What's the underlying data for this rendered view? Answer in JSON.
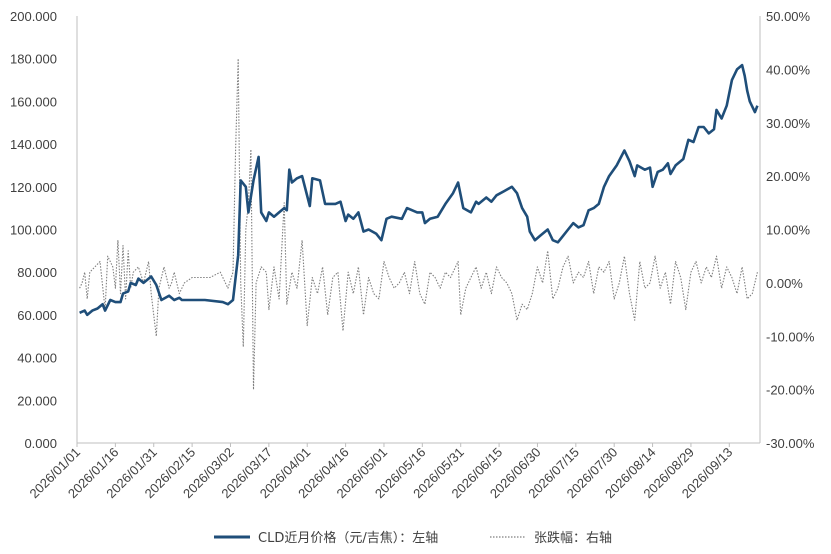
{
  "chart_data": {
    "type": "line",
    "x_tick_labels": [
      "2026/01/01",
      "2026/01/16",
      "2026/01/31",
      "2026/02/15",
      "2026/03/02",
      "2026/03/17",
      "2026/04/01",
      "2026/04/16",
      "2026/05/01",
      "2026/05/16",
      "2026/05/31",
      "2026/06/15",
      "2026/06/30",
      "2026/07/15",
      "2026/07/30",
      "2026/08/14",
      "2026/08/29",
      "2026/09/13"
    ],
    "x_range": [
      "2026-01-01",
      "2026-09-25"
    ],
    "y_left": {
      "min": 0,
      "max": 200,
      "step": 20,
      "tick_labels": [
        "0.000",
        "20.000",
        "40.000",
        "60.000",
        "80.000",
        "100.000",
        "120.000",
        "140.000",
        "160.000",
        "180.000",
        "200.000"
      ]
    },
    "y_right": {
      "min": -30,
      "max": 50,
      "step": 10,
      "tick_labels": [
        "-30.00%",
        "-20.00%",
        "-10.00%",
        "0.00%",
        "10.00%",
        "20.00%",
        "30.00%",
        "40.00%",
        "50.00%"
      ]
    },
    "grid": false,
    "legend_position": "bottom",
    "series": [
      {
        "name": "CLD近月价格（元/吉焦）：左轴",
        "axis": "left",
        "style": "solid",
        "color": "#1f4e79",
        "points": [
          [
            "2026-01-02",
            61
          ],
          [
            "2026-01-04",
            62
          ],
          [
            "2026-01-05",
            60
          ],
          [
            "2026-01-07",
            62
          ],
          [
            "2026-01-09",
            63
          ],
          [
            "2026-01-11",
            65
          ],
          [
            "2026-01-12",
            62
          ],
          [
            "2026-01-14",
            67
          ],
          [
            "2026-01-16",
            66
          ],
          [
            "2026-01-18",
            66
          ],
          [
            "2026-01-19",
            70
          ],
          [
            "2026-01-21",
            71
          ],
          [
            "2026-01-22",
            75
          ],
          [
            "2026-01-24",
            74
          ],
          [
            "2026-01-25",
            77
          ],
          [
            "2026-01-27",
            75
          ],
          [
            "2026-01-30",
            78
          ],
          [
            "2026-02-01",
            74
          ],
          [
            "2026-02-03",
            67
          ],
          [
            "2026-02-06",
            69
          ],
          [
            "2026-02-08",
            67
          ],
          [
            "2026-02-10",
            68
          ],
          [
            "2026-02-11",
            67
          ],
          [
            "2026-02-14",
            67
          ],
          [
            "2026-02-20",
            67
          ],
          [
            "2026-02-27",
            66
          ],
          [
            "2026-03-01",
            65
          ],
          [
            "2026-03-03",
            67
          ],
          [
            "2026-03-05",
            88
          ],
          [
            "2026-03-06",
            123
          ],
          [
            "2026-03-08",
            120
          ],
          [
            "2026-03-09",
            108
          ],
          [
            "2026-03-11",
            123
          ],
          [
            "2026-03-13",
            134
          ],
          [
            "2026-03-14",
            108
          ],
          [
            "2026-03-16",
            104
          ],
          [
            "2026-03-17",
            108
          ],
          [
            "2026-03-19",
            106
          ],
          [
            "2026-03-21",
            108
          ],
          [
            "2026-03-23",
            110
          ],
          [
            "2026-03-24",
            109
          ],
          [
            "2026-03-25",
            128
          ],
          [
            "2026-03-26",
            122
          ],
          [
            "2026-03-28",
            124
          ],
          [
            "2026-03-30",
            125
          ],
          [
            "2026-04-02",
            111
          ],
          [
            "2026-04-03",
            124
          ],
          [
            "2026-04-06",
            123
          ],
          [
            "2026-04-08",
            112
          ],
          [
            "2026-04-12",
            112
          ],
          [
            "2026-04-14",
            113
          ],
          [
            "2026-04-16",
            104
          ],
          [
            "2026-04-17",
            107
          ],
          [
            "2026-04-19",
            105
          ],
          [
            "2026-04-21",
            108
          ],
          [
            "2026-04-23",
            99
          ],
          [
            "2026-04-25",
            100
          ],
          [
            "2026-04-28",
            98
          ],
          [
            "2026-04-30",
            95
          ],
          [
            "2026-05-02",
            105
          ],
          [
            "2026-05-04",
            106
          ],
          [
            "2026-05-08",
            105
          ],
          [
            "2026-05-10",
            110
          ],
          [
            "2026-05-14",
            108
          ],
          [
            "2026-05-16",
            108
          ],
          [
            "2026-05-17",
            103
          ],
          [
            "2026-05-19",
            105
          ],
          [
            "2026-05-22",
            106
          ],
          [
            "2026-05-25",
            112
          ],
          [
            "2026-05-28",
            117
          ],
          [
            "2026-05-30",
            122
          ],
          [
            "2026-06-01",
            110
          ],
          [
            "2026-06-04",
            108
          ],
          [
            "2026-06-06",
            113
          ],
          [
            "2026-06-07",
            112
          ],
          [
            "2026-06-10",
            115
          ],
          [
            "2026-06-12",
            113
          ],
          [
            "2026-06-14",
            116
          ],
          [
            "2026-06-17",
            118
          ],
          [
            "2026-06-20",
            120
          ],
          [
            "2026-06-22",
            117
          ],
          [
            "2026-06-24",
            110
          ],
          [
            "2026-06-26",
            106
          ],
          [
            "2026-06-27",
            99
          ],
          [
            "2026-06-29",
            95
          ],
          [
            "2026-07-01",
            97
          ],
          [
            "2026-07-04",
            100
          ],
          [
            "2026-07-06",
            95
          ],
          [
            "2026-07-08",
            94
          ],
          [
            "2026-07-10",
            97
          ],
          [
            "2026-07-12",
            100
          ],
          [
            "2026-07-14",
            103
          ],
          [
            "2026-07-16",
            101
          ],
          [
            "2026-07-18",
            102
          ],
          [
            "2026-07-20",
            109
          ],
          [
            "2026-07-22",
            110
          ],
          [
            "2026-07-24",
            112
          ],
          [
            "2026-07-26",
            120
          ],
          [
            "2026-07-28",
            125
          ],
          [
            "2026-07-31",
            130
          ],
          [
            "2026-08-03",
            137
          ],
          [
            "2026-08-05",
            132
          ],
          [
            "2026-08-07",
            125
          ],
          [
            "2026-08-08",
            130
          ],
          [
            "2026-08-11",
            128
          ],
          [
            "2026-08-13",
            129
          ],
          [
            "2026-08-14",
            120
          ],
          [
            "2026-08-16",
            127
          ],
          [
            "2026-08-18",
            128
          ],
          [
            "2026-08-20",
            131
          ],
          [
            "2026-08-21",
            126
          ],
          [
            "2026-08-23",
            130
          ],
          [
            "2026-08-26",
            133
          ],
          [
            "2026-08-28",
            142
          ],
          [
            "2026-08-30",
            141
          ],
          [
            "2026-09-01",
            148
          ],
          [
            "2026-09-03",
            148
          ],
          [
            "2026-09-05",
            145
          ],
          [
            "2026-09-07",
            147
          ],
          [
            "2026-09-08",
            156
          ],
          [
            "2026-09-10",
            152
          ],
          [
            "2026-09-12",
            158
          ],
          [
            "2026-09-14",
            170
          ],
          [
            "2026-09-16",
            175
          ],
          [
            "2026-09-18",
            177
          ],
          [
            "2026-09-19",
            172
          ],
          [
            "2026-09-20",
            165
          ],
          [
            "2026-09-21",
            160
          ],
          [
            "2026-09-23",
            155
          ],
          [
            "2026-09-24",
            158
          ]
        ]
      },
      {
        "name": "张跌幅：右轴",
        "axis": "right",
        "style": "dotted",
        "color": "#7f7f7f",
        "points": [
          [
            "2026-01-02",
            -1
          ],
          [
            "2026-01-03",
            0
          ],
          [
            "2026-01-04",
            2
          ],
          [
            "2026-01-05",
            -3
          ],
          [
            "2026-01-06",
            2
          ],
          [
            "2026-01-08",
            3
          ],
          [
            "2026-01-10",
            4
          ],
          [
            "2026-01-12",
            -5
          ],
          [
            "2026-01-13",
            5
          ],
          [
            "2026-01-15",
            3
          ],
          [
            "2026-01-16",
            -1
          ],
          [
            "2026-01-17",
            8
          ],
          [
            "2026-01-18",
            -2
          ],
          [
            "2026-01-19",
            7
          ],
          [
            "2026-01-20",
            -3
          ],
          [
            "2026-01-21",
            6
          ],
          [
            "2026-01-22",
            -1
          ],
          [
            "2026-01-23",
            2
          ],
          [
            "2026-01-25",
            3
          ],
          [
            "2026-01-27",
            0
          ],
          [
            "2026-01-29",
            4
          ],
          [
            "2026-01-30",
            -2
          ],
          [
            "2026-01-31",
            -6
          ],
          [
            "2026-02-01",
            -10
          ],
          [
            "2026-02-02",
            -1
          ],
          [
            "2026-02-04",
            3
          ],
          [
            "2026-02-06",
            -1
          ],
          [
            "2026-02-07",
            0
          ],
          [
            "2026-02-08",
            2
          ],
          [
            "2026-02-10",
            -2
          ],
          [
            "2026-02-12",
            0
          ],
          [
            "2026-02-15",
            1
          ],
          [
            "2026-02-18",
            1
          ],
          [
            "2026-02-22",
            1
          ],
          [
            "2026-02-26",
            2
          ],
          [
            "2026-03-01",
            -1
          ],
          [
            "2026-03-03",
            2
          ],
          [
            "2026-03-04",
            25
          ],
          [
            "2026-03-05",
            42
          ],
          [
            "2026-03-06",
            0
          ],
          [
            "2026-03-07",
            -12
          ],
          [
            "2026-03-08",
            10
          ],
          [
            "2026-03-09",
            15
          ],
          [
            "2026-03-10",
            25
          ],
          [
            "2026-03-11",
            -20
          ],
          [
            "2026-03-12",
            0
          ],
          [
            "2026-03-14",
            3
          ],
          [
            "2026-03-16",
            2
          ],
          [
            "2026-03-17",
            -5
          ],
          [
            "2026-03-19",
            3
          ],
          [
            "2026-03-21",
            -3
          ],
          [
            "2026-03-23",
            15
          ],
          [
            "2026-03-24",
            -4
          ],
          [
            "2026-03-26",
            2
          ],
          [
            "2026-03-28",
            -1
          ],
          [
            "2026-03-30",
            8
          ],
          [
            "2026-04-01",
            -8
          ],
          [
            "2026-04-03",
            1
          ],
          [
            "2026-04-05",
            -2
          ],
          [
            "2026-04-07",
            3
          ],
          [
            "2026-04-09",
            -6
          ],
          [
            "2026-04-11",
            1
          ],
          [
            "2026-04-13",
            2
          ],
          [
            "2026-04-15",
            -9
          ],
          [
            "2026-04-17",
            2
          ],
          [
            "2026-04-19",
            -2
          ],
          [
            "2026-04-21",
            3
          ],
          [
            "2026-04-23",
            -6
          ],
          [
            "2026-04-25",
            1
          ],
          [
            "2026-04-27",
            -2
          ],
          [
            "2026-04-29",
            -3
          ],
          [
            "2026-05-01",
            4
          ],
          [
            "2026-05-03",
            1
          ],
          [
            "2026-05-05",
            -1
          ],
          [
            "2026-05-07",
            0
          ],
          [
            "2026-05-09",
            2
          ],
          [
            "2026-05-11",
            -2
          ],
          [
            "2026-05-13",
            4
          ],
          [
            "2026-05-15",
            -2
          ],
          [
            "2026-05-17",
            -4
          ],
          [
            "2026-05-19",
            2
          ],
          [
            "2026-05-21",
            1
          ],
          [
            "2026-05-23",
            -1
          ],
          [
            "2026-05-25",
            2
          ],
          [
            "2026-05-27",
            1
          ],
          [
            "2026-05-30",
            4
          ],
          [
            "2026-05-31",
            -6
          ],
          [
            "2026-06-02",
            -1
          ],
          [
            "2026-06-04",
            1
          ],
          [
            "2026-06-06",
            3
          ],
          [
            "2026-06-08",
            -1
          ],
          [
            "2026-06-10",
            2
          ],
          [
            "2026-06-12",
            -2
          ],
          [
            "2026-06-14",
            3
          ],
          [
            "2026-06-16",
            1
          ],
          [
            "2026-06-18",
            0
          ],
          [
            "2026-06-20",
            -2
          ],
          [
            "2026-06-22",
            -7
          ],
          [
            "2026-06-24",
            -4
          ],
          [
            "2026-06-26",
            -5
          ],
          [
            "2026-06-28",
            -2
          ],
          [
            "2026-06-30",
            3
          ],
          [
            "2026-07-02",
            0
          ],
          [
            "2026-07-04",
            6
          ],
          [
            "2026-07-06",
            -3
          ],
          [
            "2026-07-08",
            -1
          ],
          [
            "2026-07-10",
            3
          ],
          [
            "2026-07-12",
            5
          ],
          [
            "2026-07-14",
            0
          ],
          [
            "2026-07-16",
            2
          ],
          [
            "2026-07-18",
            1
          ],
          [
            "2026-07-20",
            4
          ],
          [
            "2026-07-22",
            -2
          ],
          [
            "2026-07-24",
            3
          ],
          [
            "2026-07-26",
            2
          ],
          [
            "2026-07-28",
            4
          ],
          [
            "2026-07-30",
            -3
          ],
          [
            "2026-08-01",
            0
          ],
          [
            "2026-08-03",
            5
          ],
          [
            "2026-08-05",
            -2
          ],
          [
            "2026-08-07",
            -7
          ],
          [
            "2026-08-09",
            4
          ],
          [
            "2026-08-11",
            -1
          ],
          [
            "2026-08-13",
            0
          ],
          [
            "2026-08-15",
            5
          ],
          [
            "2026-08-17",
            -1
          ],
          [
            "2026-08-19",
            2
          ],
          [
            "2026-08-21",
            -4
          ],
          [
            "2026-08-23",
            4
          ],
          [
            "2026-08-25",
            1
          ],
          [
            "2026-08-27",
            -5
          ],
          [
            "2026-08-29",
            2
          ],
          [
            "2026-08-31",
            4
          ],
          [
            "2026-09-02",
            0
          ],
          [
            "2026-09-04",
            3
          ],
          [
            "2026-09-06",
            1
          ],
          [
            "2026-09-08",
            5
          ],
          [
            "2026-09-10",
            -1
          ],
          [
            "2026-09-12",
            3
          ],
          [
            "2026-09-14",
            1
          ],
          [
            "2026-09-16",
            -2
          ],
          [
            "2026-09-18",
            3
          ],
          [
            "2026-09-19",
            0
          ],
          [
            "2026-09-20",
            -3
          ],
          [
            "2026-09-22",
            -2
          ],
          [
            "2026-09-24",
            2
          ]
        ]
      }
    ]
  }
}
